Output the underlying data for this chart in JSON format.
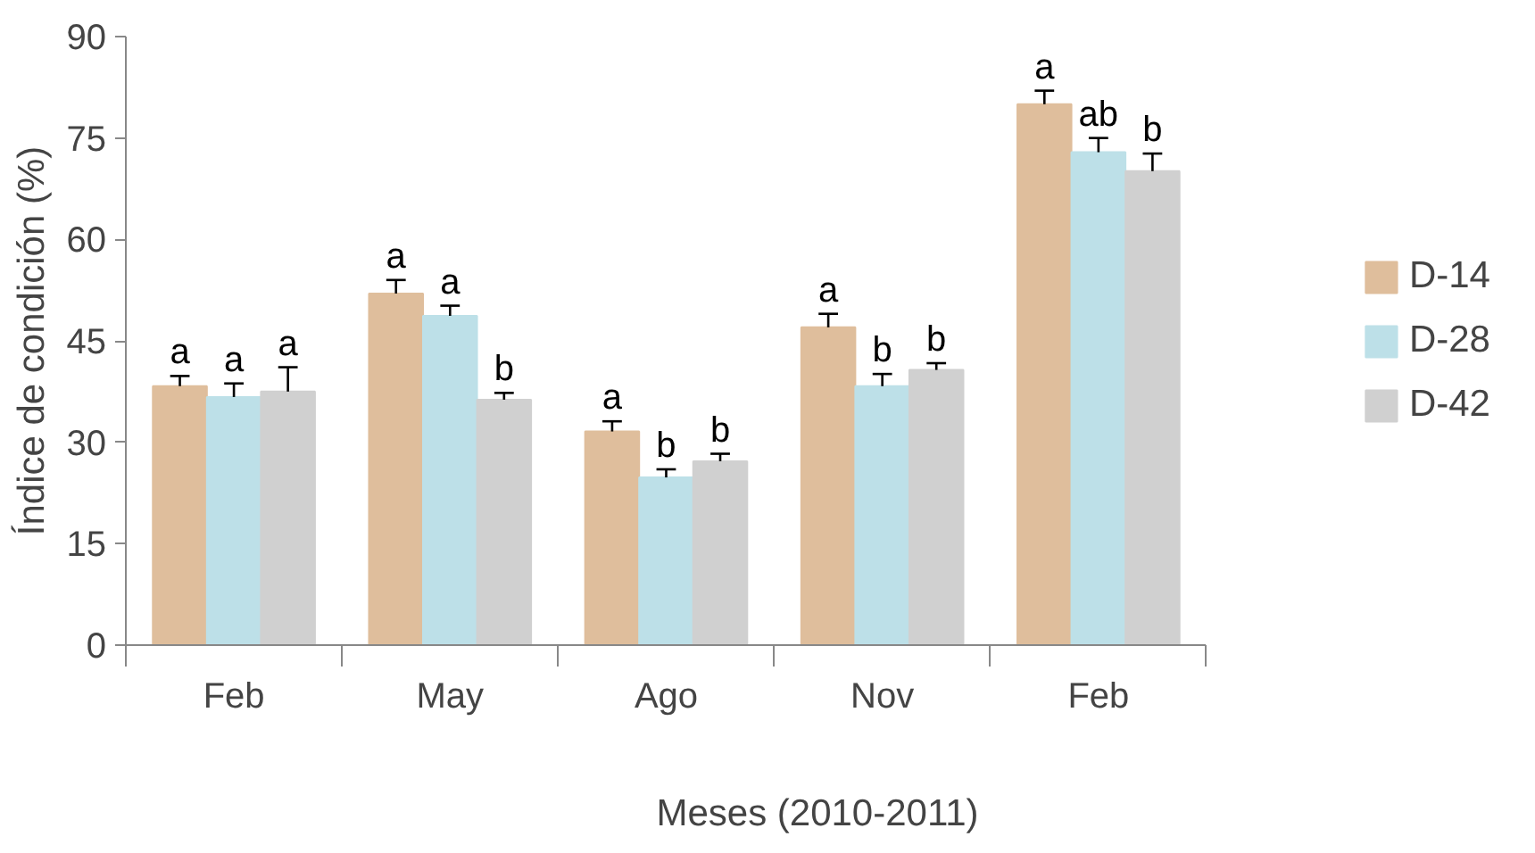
{
  "chart_data": {
    "type": "bar",
    "xlabel": "Meses (2010-2011)",
    "ylabel": "Índice de condición (%)",
    "categories": [
      "Feb",
      "May",
      "Ago",
      "Nov",
      "Feb"
    ],
    "series": [
      {
        "name": "D-14",
        "color": "#dfbe9c",
        "values": [
          38.3,
          52,
          31.6,
          47,
          80
        ],
        "errors": [
          1.5,
          2,
          1.5,
          2,
          2
        ],
        "value_labels": [
          "a",
          "a",
          "a",
          "a",
          "a"
        ]
      },
      {
        "name": "D-28",
        "color": "#bde0e8",
        "values": [
          36.7,
          48.7,
          24.8,
          38.3,
          72.9
        ],
        "errors": [
          2,
          1.5,
          1.2,
          1.8,
          2.1
        ],
        "value_labels": [
          "a",
          "a",
          "b",
          "b",
          "ab"
        ]
      },
      {
        "name": "D-42",
        "color": "#d0d0d0",
        "values": [
          37.5,
          36.3,
          27.2,
          40.7,
          70.1
        ],
        "errors": [
          3.6,
          1,
          1.1,
          1,
          2.6
        ],
        "value_labels": [
          "a",
          "b",
          "b",
          "b",
          "b"
        ]
      }
    ],
    "ylim": [
      0,
      90
    ],
    "yticks": [
      0,
      15,
      30,
      45,
      60,
      75,
      90
    ],
    "grid": false,
    "legend": "right"
  }
}
